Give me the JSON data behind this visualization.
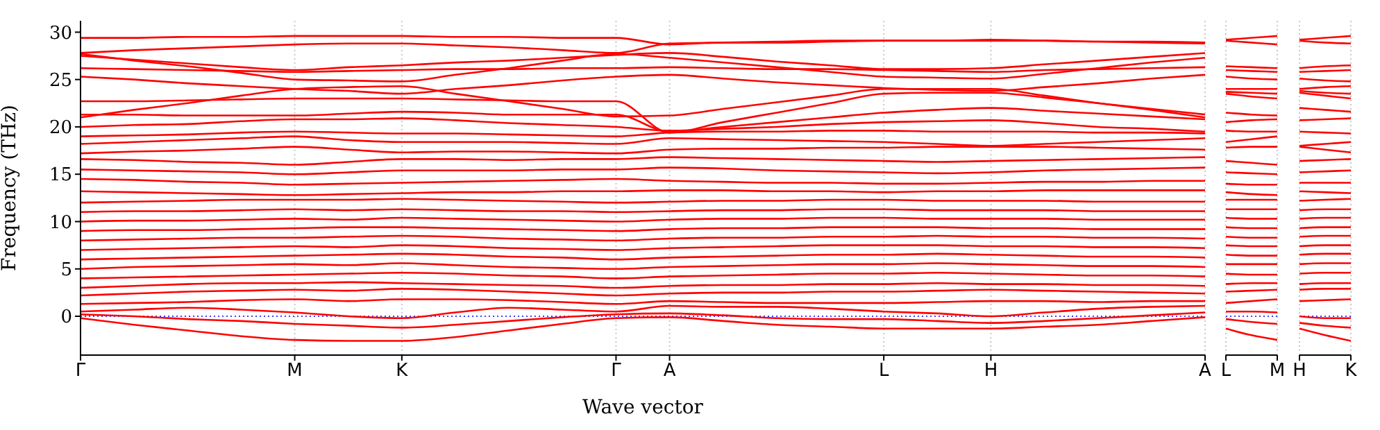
{
  "chart_data": [
    {
      "type": "line",
      "xlabel": "Wave vector",
      "ylabel": "Frequency (THz)",
      "categories": [
        "Γ",
        null,
        null,
        null,
        "M",
        null,
        "K",
        null,
        null,
        null,
        "Γ",
        "A",
        null,
        null,
        null,
        "L",
        null,
        "H",
        null,
        null,
        null,
        "A"
      ],
      "ylim": [
        -4.1,
        31.2
      ],
      "yticks": [
        0,
        5,
        10,
        15,
        20,
        25,
        30
      ],
      "grid": "x",
      "ref_lines": [
        {
          "axis": "y",
          "value": 0,
          "color": "#0000ff",
          "line_style": "dotted"
        }
      ],
      "series": [
        {
          "color": "#ff0000",
          "values": [
            -0.2,
            -0.9,
            -1.5,
            -2.1,
            -2.5,
            -2.6,
            -2.6,
            -2.2,
            -1.5,
            -0.8,
            -0.2,
            -0.1,
            -0.5,
            -0.9,
            -1.1,
            -1.3,
            -1.3,
            -1.3,
            -1.1,
            -0.9,
            -0.5,
            -0.1
          ]
        },
        {
          "color": "#ff0000",
          "values": [
            0.2,
            0,
            -0.3,
            -0.5,
            -0.8,
            -1.0,
            -1.2,
            -0.9,
            -0.5,
            -0.1,
            0.2,
            0.3,
            0.1,
            -0.2,
            -0.3,
            -0.3,
            -0.5,
            -0.7,
            -0.5,
            -0.2,
            0.1,
            0.4
          ]
        },
        {
          "color": "#ff0000",
          "values": [
            0.5,
            0.7,
            0.9,
            0.7,
            0.4,
            0,
            -0.2,
            0.4,
            0.9,
            0.7,
            0.5,
            1.1,
            1.0,
            1.0,
            0.8,
            0.5,
            0.3,
            0,
            0.4,
            0.8,
            1.0,
            1.1
          ]
        },
        {
          "color": "#ff0000",
          "values": [
            1.3,
            1.4,
            1.5,
            1.7,
            1.8,
            1.6,
            1.8,
            1.8,
            1.7,
            1.5,
            1.3,
            1.6,
            1.5,
            1.4,
            1.4,
            1.4,
            1.5,
            1.6,
            1.6,
            1.5,
            1.6,
            1.6
          ]
        },
        {
          "color": "#ff0000",
          "values": [
            2.2,
            2.4,
            2.6,
            2.7,
            2.8,
            2.7,
            2.9,
            2.8,
            2.6,
            2.4,
            2.2,
            2.4,
            2.5,
            2.5,
            2.6,
            2.6,
            2.7,
            2.8,
            2.7,
            2.6,
            2.5,
            2.4
          ]
        },
        {
          "color": "#ff0000",
          "values": [
            3.0,
            3.2,
            3.4,
            3.5,
            3.5,
            3.6,
            3.5,
            3.4,
            3.3,
            3.2,
            3.0,
            3.2,
            3.3,
            3.3,
            3.4,
            3.4,
            3.5,
            3.4,
            3.4,
            3.3,
            3.3,
            3.2
          ]
        },
        {
          "color": "#ff0000",
          "values": [
            4.0,
            4.1,
            4.2,
            4.3,
            4.4,
            4.5,
            4.6,
            4.5,
            4.3,
            4.2,
            4.0,
            4.2,
            4.3,
            4.4,
            4.5,
            4.5,
            4.6,
            4.5,
            4.4,
            4.3,
            4.3,
            4.2
          ]
        },
        {
          "color": "#ff0000",
          "values": [
            5.0,
            5.2,
            5.3,
            5.4,
            5.5,
            5.4,
            5.6,
            5.4,
            5.2,
            5.1,
            5.0,
            5.2,
            5.3,
            5.4,
            5.5,
            5.5,
            5.6,
            5.5,
            5.4,
            5.3,
            5.3,
            5.2
          ]
        },
        {
          "color": "#ff0000",
          "values": [
            6.0,
            6.1,
            6.2,
            6.3,
            6.4,
            6.5,
            6.6,
            6.5,
            6.3,
            6.2,
            6.0,
            6.2,
            6.3,
            6.4,
            6.5,
            6.5,
            6.6,
            6.5,
            6.4,
            6.3,
            6.3,
            6.2
          ]
        },
        {
          "color": "#ff0000",
          "values": [
            7.0,
            7.1,
            7.2,
            7.3,
            7.4,
            7.3,
            7.5,
            7.4,
            7.2,
            7.1,
            7.0,
            7.2,
            7.3,
            7.4,
            7.5,
            7.5,
            7.5,
            7.4,
            7.4,
            7.3,
            7.3,
            7.2
          ]
        },
        {
          "color": "#ff0000",
          "values": [
            8.0,
            8.1,
            8.2,
            8.3,
            8.3,
            8.4,
            8.5,
            8.4,
            8.2,
            8.1,
            8.0,
            8.2,
            8.3,
            8.3,
            8.4,
            8.4,
            8.5,
            8.4,
            8.4,
            8.3,
            8.3,
            8.2
          ]
        },
        {
          "color": "#ff0000",
          "values": [
            9.0,
            9.1,
            9.1,
            9.2,
            9.3,
            9.4,
            9.4,
            9.3,
            9.2,
            9.1,
            9.0,
            9.2,
            9.3,
            9.3,
            9.4,
            9.4,
            9.4,
            9.3,
            9.3,
            9.2,
            9.2,
            9.2
          ]
        },
        {
          "color": "#ff0000",
          "values": [
            10.0,
            10.1,
            10.1,
            10.2,
            10.3,
            10.2,
            10.4,
            10.3,
            10.2,
            10.1,
            10.0,
            10.2,
            10.3,
            10.3,
            10.4,
            10.4,
            10.3,
            10.3,
            10.3,
            10.2,
            10.2,
            10.2
          ]
        },
        {
          "color": "#ff0000",
          "values": [
            11.0,
            11.1,
            11.1,
            11.2,
            11.3,
            11.2,
            11.3,
            11.2,
            11.1,
            11.1,
            11.0,
            11.1,
            11.2,
            11.2,
            11.3,
            11.3,
            11.2,
            11.2,
            11.2,
            11.1,
            11.1,
            11.1
          ]
        },
        {
          "color": "#ff0000",
          "values": [
            12.0,
            12.1,
            12.2,
            12.3,
            12.3,
            12.3,
            12.4,
            12.3,
            12.2,
            12.1,
            12.0,
            12.1,
            12.2,
            12.2,
            12.3,
            12.3,
            12.2,
            12.2,
            12.2,
            12.1,
            12.1,
            12.1
          ]
        },
        {
          "color": "#ff0000",
          "values": [
            13.2,
            13.1,
            13.0,
            12.9,
            12.8,
            12.9,
            13.0,
            13.1,
            13.1,
            13.2,
            13.2,
            13.3,
            13.3,
            13.2,
            13.2,
            13.1,
            13.2,
            13.2,
            13.3,
            13.3,
            13.3,
            13.3
          ]
        },
        {
          "color": "#ff0000",
          "values": [
            14.5,
            14.4,
            14.2,
            14.1,
            13.9,
            14.0,
            14.1,
            14.2,
            14.3,
            14.4,
            14.5,
            14.3,
            14.2,
            14.1,
            14.1,
            14.0,
            14.0,
            14.1,
            14.2,
            14.2,
            14.3,
            14.3
          ]
        },
        {
          "color": "#ff0000",
          "values": [
            15.5,
            15.4,
            15.3,
            15.2,
            15.0,
            15.2,
            15.4,
            15.4,
            15.4,
            15.5,
            15.5,
            15.7,
            15.6,
            15.4,
            15.3,
            15.2,
            15.1,
            15.2,
            15.4,
            15.5,
            15.6,
            15.7
          ]
        },
        {
          "color": "#ff0000",
          "values": [
            16.6,
            16.5,
            16.3,
            16.2,
            16.0,
            16.3,
            16.6,
            16.6,
            16.5,
            16.6,
            16.6,
            16.8,
            16.7,
            16.6,
            16.5,
            16.4,
            16.3,
            16.4,
            16.5,
            16.6,
            16.7,
            16.8
          ]
        },
        {
          "color": "#ff0000",
          "values": [
            17.2,
            17.4,
            17.5,
            17.7,
            17.9,
            17.6,
            17.3,
            17.4,
            17.4,
            17.3,
            17.2,
            17.6,
            17.7,
            17.7,
            17.8,
            17.8,
            17.9,
            17.9,
            17.9,
            17.8,
            17.7,
            17.6
          ]
        },
        {
          "color": "#ff0000",
          "values": [
            18.2,
            18.4,
            18.6,
            18.8,
            19.0,
            18.6,
            18.4,
            18.4,
            18.4,
            18.3,
            18.2,
            18.8,
            18.7,
            18.6,
            18.5,
            18.4,
            18.2,
            18.0,
            18.2,
            18.4,
            18.6,
            18.8
          ]
        },
        {
          "color": "#ff0000",
          "values": [
            19.0,
            19.1,
            19.2,
            19.4,
            19.5,
            19.4,
            19.3,
            19.3,
            19.2,
            19.1,
            19.0,
            19.4,
            19.5,
            19.5,
            19.6,
            19.6,
            19.5,
            19.5,
            19.5,
            19.4,
            19.4,
            19.3
          ]
        },
        {
          "color": "#ff0000",
          "values": [
            20.0,
            20.2,
            20.3,
            20.6,
            20.8,
            20.8,
            20.9,
            20.7,
            20.4,
            20.2,
            20.0,
            19.6,
            19.8,
            20.0,
            20.3,
            20.5,
            20.6,
            20.7,
            20.4,
            20.0,
            19.8,
            19.5
          ]
        },
        {
          "color": "#ff0000",
          "values": [
            21.3,
            21.3,
            21.2,
            21.2,
            21.2,
            21.4,
            21.6,
            21.5,
            21.3,
            21.3,
            21.3,
            19.5,
            20.0,
            20.5,
            21.0,
            21.5,
            21.8,
            22.0,
            21.7,
            21.4,
            21.1,
            20.8
          ]
        },
        {
          "color": "#ff0000",
          "values": [
            22.7,
            22.7,
            22.8,
            22.9,
            23.0,
            23.0,
            23.0,
            22.9,
            22.8,
            22.7,
            22.7,
            19.4,
            20.5,
            21.5,
            22.5,
            23.5,
            23.6,
            23.6,
            23.1,
            22.5,
            21.9,
            21.3
          ]
        },
        {
          "color": "#ff0000",
          "values": [
            21.0,
            21.8,
            22.5,
            23.3,
            24.0,
            24.2,
            24.3,
            23.5,
            22.7,
            21.9,
            21.1,
            21.2,
            21.9,
            22.6,
            23.3,
            24.0,
            24.0,
            24.0,
            23.3,
            22.5,
            21.8,
            21.0
          ]
        },
        {
          "color": "#ff0000",
          "values": [
            25.3,
            25.0,
            24.6,
            24.3,
            24.0,
            23.8,
            23.5,
            24.0,
            24.4,
            24.9,
            25.3,
            25.5,
            25.1,
            24.7,
            24.4,
            24.1,
            23.9,
            23.8,
            24.2,
            24.6,
            25.1,
            25.5
          ]
        },
        {
          "color": "#ff0000",
          "values": [
            26.2,
            26.1,
            26.0,
            25.9,
            25.8,
            25.9,
            26.0,
            26.1,
            26.1,
            26.2,
            26.2,
            26.3,
            26.2,
            26.1,
            26.1,
            26.0,
            25.9,
            25.8,
            26.0,
            26.1,
            26.2,
            26.3
          ]
        },
        {
          "color": "#ff0000",
          "values": [
            27.7,
            27.0,
            26.4,
            25.7,
            25.0,
            24.9,
            24.8,
            25.5,
            26.2,
            27.0,
            27.7,
            27.3,
            26.8,
            26.3,
            25.8,
            25.3,
            25.2,
            25.1,
            25.6,
            26.2,
            26.8,
            27.3
          ]
        },
        {
          "color": "#ff0000",
          "values": [
            27.5,
            27.1,
            26.7,
            26.3,
            26.0,
            26.3,
            26.5,
            26.8,
            27.0,
            27.3,
            27.6,
            27.8,
            27.4,
            26.9,
            26.5,
            26.1,
            26.1,
            26.2,
            26.6,
            27.0,
            27.4,
            27.8
          ]
        },
        {
          "color": "#ff0000",
          "values": [
            27.8,
            28.1,
            28.3,
            28.5,
            28.7,
            28.8,
            28.8,
            28.6,
            28.4,
            28.1,
            27.8,
            28.8,
            28.9,
            29.0,
            29.1,
            29.1,
            29.1,
            29.1,
            29.1,
            29.0,
            28.9,
            28.8
          ]
        },
        {
          "color": "#ff0000",
          "values": [
            29.4,
            29.4,
            29.5,
            29.5,
            29.6,
            29.6,
            29.6,
            29.5,
            29.5,
            29.4,
            29.4,
            28.7,
            28.9,
            28.9,
            29.0,
            29.1,
            29.1,
            29.2,
            29.1,
            29.0,
            29.0,
            28.9
          ]
        }
      ]
    },
    {
      "type": "line",
      "categories": [
        "L",
        null,
        "M"
      ],
      "ylim": [
        -4.1,
        31.2
      ],
      "yticks": [
        0,
        5,
        10,
        15,
        20,
        25,
        30
      ],
      "tick_labels": "x",
      "grid": "x",
      "ref_lines": [
        {
          "axis": "y",
          "value": 0,
          "color": "#0000ff",
          "line_style": "dotted"
        }
      ],
      "series": [
        {
          "color": "#ff0000",
          "values": [
            -1.3,
            -2.0,
            -2.5
          ]
        },
        {
          "color": "#ff0000",
          "values": [
            -0.3,
            -0.6,
            -0.8
          ]
        },
        {
          "color": "#ff0000",
          "values": [
            0.5,
            0.5,
            0.4
          ]
        },
        {
          "color": "#ff0000",
          "values": [
            1.4,
            1.6,
            1.8
          ]
        },
        {
          "color": "#ff0000",
          "values": [
            2.6,
            2.7,
            2.8
          ]
        },
        {
          "color": "#ff0000",
          "values": [
            3.4,
            3.5,
            3.5
          ]
        },
        {
          "color": "#ff0000",
          "values": [
            4.5,
            4.4,
            4.4
          ]
        },
        {
          "color": "#ff0000",
          "values": [
            5.5,
            5.5,
            5.5
          ]
        },
        {
          "color": "#ff0000",
          "values": [
            6.5,
            6.4,
            6.4
          ]
        },
        {
          "color": "#ff0000",
          "values": [
            7.5,
            7.4,
            7.4
          ]
        },
        {
          "color": "#ff0000",
          "values": [
            8.4,
            8.3,
            8.3
          ]
        },
        {
          "color": "#ff0000",
          "values": [
            9.4,
            9.3,
            9.3
          ]
        },
        {
          "color": "#ff0000",
          "values": [
            10.4,
            10.3,
            10.3
          ]
        },
        {
          "color": "#ff0000",
          "values": [
            11.3,
            11.3,
            11.3
          ]
        },
        {
          "color": "#ff0000",
          "values": [
            12.3,
            12.3,
            12.3
          ]
        },
        {
          "color": "#ff0000",
          "values": [
            13.1,
            12.9,
            12.8
          ]
        },
        {
          "color": "#ff0000",
          "values": [
            14.0,
            13.9,
            13.9
          ]
        },
        {
          "color": "#ff0000",
          "values": [
            15.2,
            15.1,
            15.0
          ]
        },
        {
          "color": "#ff0000",
          "values": [
            16.4,
            16.2,
            16.0
          ]
        },
        {
          "color": "#ff0000",
          "values": [
            17.8,
            17.9,
            17.9
          ]
        },
        {
          "color": "#ff0000",
          "values": [
            18.4,
            18.7,
            19.0
          ]
        },
        {
          "color": "#ff0000",
          "values": [
            19.6,
            19.5,
            19.5
          ]
        },
        {
          "color": "#ff0000",
          "values": [
            20.5,
            20.7,
            20.8
          ]
        },
        {
          "color": "#ff0000",
          "values": [
            21.5,
            21.3,
            21.2
          ]
        },
        {
          "color": "#ff0000",
          "values": [
            23.5,
            23.2,
            23.0
          ]
        },
        {
          "color": "#ff0000",
          "values": [
            24.0,
            24.0,
            24.0
          ]
        },
        {
          "color": "#ff0000",
          "values": [
            23.7,
            23.6,
            23.5
          ]
        },
        {
          "color": "#ff0000",
          "values": [
            26.0,
            25.9,
            25.8
          ]
        },
        {
          "color": "#ff0000",
          "values": [
            25.3,
            25.1,
            25.0
          ]
        },
        {
          "color": "#ff0000",
          "values": [
            26.4,
            26.3,
            26.2
          ]
        },
        {
          "color": "#ff0000",
          "values": [
            29.1,
            28.9,
            28.7
          ]
        },
        {
          "color": "#ff0000",
          "values": [
            29.2,
            29.4,
            29.6
          ]
        }
      ]
    },
    {
      "type": "line",
      "categories": [
        "H",
        null,
        "K"
      ],
      "ylim": [
        -4.1,
        31.2
      ],
      "yticks": [
        0,
        5,
        10,
        15,
        20,
        25,
        30
      ],
      "tick_labels": "x",
      "grid": "x",
      "ref_lines": [
        {
          "axis": "y",
          "value": 0,
          "color": "#0000ff",
          "line_style": "dotted"
        }
      ],
      "series": [
        {
          "color": "#ff0000",
          "values": [
            -1.3,
            -2.0,
            -2.6
          ]
        },
        {
          "color": "#ff0000",
          "values": [
            -0.7,
            -1.0,
            -1.2
          ]
        },
        {
          "color": "#ff0000",
          "values": [
            0,
            -0.2,
            -0.2
          ]
        },
        {
          "color": "#ff0000",
          "values": [
            1.6,
            1.7,
            1.8
          ]
        },
        {
          "color": "#ff0000",
          "values": [
            2.8,
            2.9,
            2.9
          ]
        },
        {
          "color": "#ff0000",
          "values": [
            3.4,
            3.5,
            3.5
          ]
        },
        {
          "color": "#ff0000",
          "values": [
            4.5,
            4.6,
            4.6
          ]
        },
        {
          "color": "#ff0000",
          "values": [
            5.5,
            5.6,
            5.6
          ]
        },
        {
          "color": "#ff0000",
          "values": [
            6.5,
            6.6,
            6.6
          ]
        },
        {
          "color": "#ff0000",
          "values": [
            7.4,
            7.5,
            7.5
          ]
        },
        {
          "color": "#ff0000",
          "values": [
            8.4,
            8.5,
            8.5
          ]
        },
        {
          "color": "#ff0000",
          "values": [
            9.3,
            9.4,
            9.4
          ]
        },
        {
          "color": "#ff0000",
          "values": [
            10.3,
            10.4,
            10.4
          ]
        },
        {
          "color": "#ff0000",
          "values": [
            11.2,
            11.3,
            11.3
          ]
        },
        {
          "color": "#ff0000",
          "values": [
            12.2,
            12.3,
            12.4
          ]
        },
        {
          "color": "#ff0000",
          "values": [
            13.2,
            13.1,
            13.0
          ]
        },
        {
          "color": "#ff0000",
          "values": [
            14.1,
            14.1,
            14.1
          ]
        },
        {
          "color": "#ff0000",
          "values": [
            15.2,
            15.3,
            15.4
          ]
        },
        {
          "color": "#ff0000",
          "values": [
            16.4,
            16.5,
            16.6
          ]
        },
        {
          "color": "#ff0000",
          "values": [
            17.9,
            17.6,
            17.3
          ]
        },
        {
          "color": "#ff0000",
          "values": [
            18.0,
            18.2,
            18.4
          ]
        },
        {
          "color": "#ff0000",
          "values": [
            19.5,
            19.4,
            19.3
          ]
        },
        {
          "color": "#ff0000",
          "values": [
            20.7,
            20.8,
            20.9
          ]
        },
        {
          "color": "#ff0000",
          "values": [
            22.0,
            21.8,
            21.6
          ]
        },
        {
          "color": "#ff0000",
          "values": [
            23.6,
            23.3,
            23.0
          ]
        },
        {
          "color": "#ff0000",
          "values": [
            24.0,
            24.2,
            24.3
          ]
        },
        {
          "color": "#ff0000",
          "values": [
            23.8,
            23.6,
            23.5
          ]
        },
        {
          "color": "#ff0000",
          "values": [
            25.8,
            25.9,
            26.0
          ]
        },
        {
          "color": "#ff0000",
          "values": [
            25.1,
            24.9,
            24.8
          ]
        },
        {
          "color": "#ff0000",
          "values": [
            26.2,
            26.4,
            26.5
          ]
        },
        {
          "color": "#ff0000",
          "values": [
            29.1,
            28.9,
            28.8
          ]
        },
        {
          "color": "#ff0000",
          "values": [
            29.2,
            29.4,
            29.6
          ]
        }
      ]
    }
  ]
}
